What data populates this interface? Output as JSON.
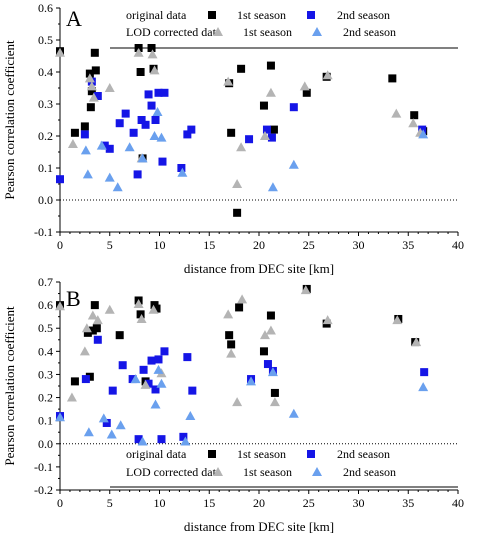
{
  "chart_data": [
    {
      "type": "scatter",
      "panel": "A",
      "xlabel": "distance from DEC site [km]",
      "ylabel": "Pearson correlation coefficient",
      "xlim": [
        0,
        40
      ],
      "ylim": [
        -0.1,
        0.6
      ],
      "x_ticks": [
        0,
        5,
        10,
        15,
        20,
        25,
        30,
        35,
        40
      ],
      "y_ticks": [
        -0.1,
        0.0,
        0.1,
        0.2,
        0.3,
        0.4,
        0.5,
        0.6
      ],
      "zero_line": true,
      "legend": {
        "placement": "top",
        "headers": [
          "original data",
          "LOD corrected data"
        ],
        "entries": [
          "1st season",
          "2nd season",
          "1st season",
          "2nd season"
        ]
      },
      "series": [
        {
          "name": "original data 1st season",
          "marker": "square",
          "color": "#000000",
          "points": [
            [
              0,
              0.465
            ],
            [
              1.5,
              0.21
            ],
            [
              2.5,
              0.23
            ],
            [
              3,
              0.395
            ],
            [
              3.1,
              0.29
            ],
            [
              3.2,
              0.34
            ],
            [
              3.5,
              0.46
            ],
            [
              3.6,
              0.405
            ],
            [
              7.9,
              0.475
            ],
            [
              8.1,
              0.4
            ],
            [
              8.3,
              0.13
            ],
            [
              9.2,
              0.475
            ],
            [
              9.4,
              0.41
            ],
            [
              17,
              0.365
            ],
            [
              17.2,
              0.21
            ],
            [
              17.8,
              -0.04
            ],
            [
              18.2,
              0.41
            ],
            [
              20.5,
              0.295
            ],
            [
              21.2,
              0.42
            ],
            [
              21.5,
              0.22
            ],
            [
              24.8,
              0.335
            ],
            [
              26.8,
              0.385
            ],
            [
              33.4,
              0.38
            ],
            [
              35.6,
              0.265
            ],
            [
              36.5,
              0.215
            ]
          ]
        },
        {
          "name": "original data 2nd season",
          "marker": "square",
          "color": "#1515e6",
          "points": [
            [
              0,
              0.065
            ],
            [
              2.5,
              0.205
            ],
            [
              3.2,
              0.37
            ],
            [
              3.8,
              0.325
            ],
            [
              4.5,
              0.17
            ],
            [
              5,
              0.16
            ],
            [
              6,
              0.24
            ],
            [
              6.6,
              0.27
            ],
            [
              7.4,
              0.21
            ],
            [
              7.8,
              0.08
            ],
            [
              8.2,
              0.25
            ],
            [
              8.6,
              0.235
            ],
            [
              8.9,
              0.33
            ],
            [
              9.2,
              0.295
            ],
            [
              9.6,
              0.25
            ],
            [
              9.9,
              0.335
            ],
            [
              10.3,
              0.12
            ],
            [
              10.5,
              0.335
            ],
            [
              12.2,
              0.1
            ],
            [
              12.8,
              0.205
            ],
            [
              13.2,
              0.22
            ],
            [
              19,
              0.19
            ],
            [
              20.8,
              0.22
            ],
            [
              21.3,
              0.195
            ],
            [
              23.5,
              0.29
            ],
            [
              36.4,
              0.22
            ]
          ]
        },
        {
          "name": "LOD corrected data 1st season",
          "marker": "triangle",
          "color": "#b4b4b4",
          "points": [
            [
              0,
              0.46
            ],
            [
              1.3,
              0.175
            ],
            [
              3,
              0.38
            ],
            [
              3.2,
              0.355
            ],
            [
              3.4,
              0.32
            ],
            [
              5,
              0.35
            ],
            [
              7.9,
              0.46
            ],
            [
              8.2,
              0.13
            ],
            [
              9.3,
              0.455
            ],
            [
              9.5,
              0.405
            ],
            [
              16.9,
              0.37
            ],
            [
              17.8,
              0.05
            ],
            [
              18.2,
              0.165
            ],
            [
              20.6,
              0.2
            ],
            [
              21.2,
              0.335
            ],
            [
              24.6,
              0.355
            ],
            [
              26.9,
              0.39
            ],
            [
              33.8,
              0.27
            ],
            [
              35.5,
              0.24
            ],
            [
              36.2,
              0.21
            ]
          ]
        },
        {
          "name": "LOD corrected data 2nd season",
          "marker": "triangle",
          "color": "#6aa0ee",
          "points": [
            [
              2.6,
              0.155
            ],
            [
              2.8,
              0.08
            ],
            [
              4.2,
              0.17
            ],
            [
              5,
              0.07
            ],
            [
              5.8,
              0.04
            ],
            [
              7,
              0.165
            ],
            [
              8.3,
              0.13
            ],
            [
              9.5,
              0.2
            ],
            [
              9.8,
              0.275
            ],
            [
              10.2,
              0.195
            ],
            [
              12.3,
              0.085
            ],
            [
              21.4,
              0.04
            ],
            [
              23.5,
              0.11
            ],
            [
              36.5,
              0.205
            ]
          ]
        }
      ]
    },
    {
      "type": "scatter",
      "panel": "B",
      "xlabel": "distance from DEC site [km]",
      "ylabel": "Pearson correlation coefficient",
      "xlim": [
        0,
        40
      ],
      "ylim": [
        -0.2,
        0.7
      ],
      "x_ticks": [
        0,
        5,
        10,
        15,
        20,
        25,
        30,
        35,
        40
      ],
      "y_ticks": [
        -0.2,
        -0.1,
        0.0,
        0.1,
        0.2,
        0.3,
        0.4,
        0.5,
        0.6,
        0.7
      ],
      "zero_line": true,
      "legend": {
        "placement": "bottom",
        "headers": [
          "original data",
          "LOD corrected data"
        ],
        "entries": [
          "1st season",
          "2nd season",
          "1st season",
          "2nd season"
        ]
      },
      "series": [
        {
          "name": "original data 1st season",
          "marker": "square",
          "color": "#000000",
          "points": [
            [
              0,
              0.6
            ],
            [
              1.5,
              0.27
            ],
            [
              2.8,
              0.48
            ],
            [
              3,
              0.29
            ],
            [
              3.5,
              0.6
            ],
            [
              3.7,
              0.5
            ],
            [
              3.3,
              0.49
            ],
            [
              6,
              0.47
            ],
            [
              7.9,
              0.62
            ],
            [
              8.1,
              0.56
            ],
            [
              8.6,
              0.27
            ],
            [
              9.5,
              0.6
            ],
            [
              9.7,
              0.585
            ],
            [
              17,
              0.47
            ],
            [
              17.2,
              0.43
            ],
            [
              18,
              0.59
            ],
            [
              20.5,
              0.4
            ],
            [
              21.2,
              0.555
            ],
            [
              21.6,
              0.22
            ],
            [
              24.8,
              0.67
            ],
            [
              26.8,
              0.52
            ],
            [
              34,
              0.54
            ],
            [
              35.7,
              0.44
            ]
          ]
        },
        {
          "name": "original data 2nd season",
          "marker": "square",
          "color": "#1515e6",
          "points": [
            [
              0,
              0.12
            ],
            [
              2.6,
              0.28
            ],
            [
              3.8,
              0.45
            ],
            [
              4.7,
              0.09
            ],
            [
              5.3,
              0.23
            ],
            [
              6.3,
              0.34
            ],
            [
              7.3,
              0.28
            ],
            [
              7.9,
              0.02
            ],
            [
              8.4,
              0.32
            ],
            [
              8.9,
              0.26
            ],
            [
              9.2,
              0.36
            ],
            [
              9.6,
              0.235
            ],
            [
              9.9,
              0.365
            ],
            [
              10.2,
              0.02
            ],
            [
              10.5,
              0.4
            ],
            [
              12.4,
              0.03
            ],
            [
              12.8,
              0.375
            ],
            [
              13.3,
              0.23
            ],
            [
              19.2,
              0.28
            ],
            [
              20.9,
              0.345
            ],
            [
              21.4,
              0.315
            ],
            [
              36.6,
              0.31
            ]
          ]
        },
        {
          "name": "LOD corrected data 1st season",
          "marker": "triangle",
          "color": "#b4b4b4",
          "points": [
            [
              0,
              0.595
            ],
            [
              1.2,
              0.2
            ],
            [
              2.5,
              0.4
            ],
            [
              2.7,
              0.5
            ],
            [
              3.3,
              0.555
            ],
            [
              3.8,
              0.535
            ],
            [
              5,
              0.58
            ],
            [
              7.9,
              0.605
            ],
            [
              8.2,
              0.54
            ],
            [
              8.6,
              0.255
            ],
            [
              9.4,
              0.58
            ],
            [
              10.2,
              0.305
            ],
            [
              16.9,
              0.56
            ],
            [
              17.2,
              0.39
            ],
            [
              17.8,
              0.18
            ],
            [
              18.3,
              0.625
            ],
            [
              20.6,
              0.47
            ],
            [
              21.2,
              0.49
            ],
            [
              21.6,
              0.18
            ],
            [
              24.7,
              0.665
            ],
            [
              26.9,
              0.535
            ],
            [
              33.9,
              0.535
            ],
            [
              35.8,
              0.44
            ]
          ]
        },
        {
          "name": "LOD corrected data 2nd season",
          "marker": "triangle",
          "color": "#6aa0ee",
          "points": [
            [
              0,
              0.115
            ],
            [
              2.9,
              0.05
            ],
            [
              4.4,
              0.11
            ],
            [
              5.2,
              0.04
            ],
            [
              6.1,
              0.08
            ],
            [
              7.6,
              0.28
            ],
            [
              8.3,
              0.01
            ],
            [
              9.6,
              0.17
            ],
            [
              9.9,
              0.32
            ],
            [
              10.2,
              0.26
            ],
            [
              12.6,
              0.01
            ],
            [
              13.1,
              0.12
            ],
            [
              19.2,
              0.27
            ],
            [
              21.4,
              0.31
            ],
            [
              23.5,
              0.13
            ],
            [
              36.5,
              0.245
            ]
          ]
        }
      ]
    }
  ]
}
